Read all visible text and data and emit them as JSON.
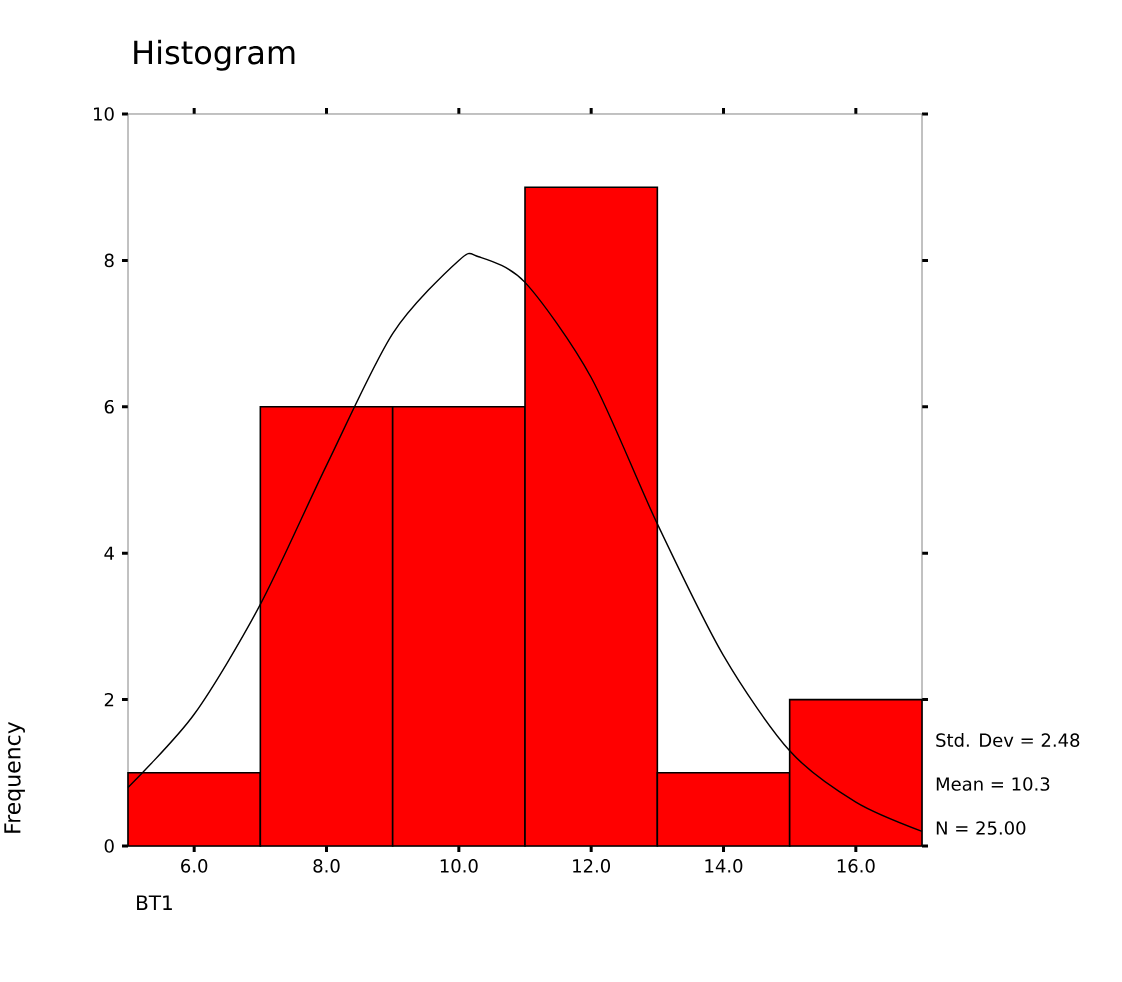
{
  "chart_data": {
    "type": "histogram",
    "title": "Histogram",
    "xlabel": "BT1",
    "ylabel": "Frequency",
    "bins": [
      5,
      7,
      9,
      11,
      13,
      15,
      17
    ],
    "values": [
      1,
      6,
      6,
      9,
      1,
      2
    ],
    "color": "#ff0000",
    "series": [
      {
        "type": "line",
        "color": "#000000",
        "x": [
          5,
          6,
          7,
          8,
          9,
          10,
          10.3,
          11,
          12,
          13,
          14,
          15,
          16,
          17
        ],
        "values": [
          0.8,
          1.8,
          3.3,
          5.2,
          7.0,
          8.0,
          8.05,
          7.7,
          6.4,
          4.4,
          2.6,
          1.3,
          0.6,
          0.2
        ]
      }
    ],
    "xlim": [
      5,
      17
    ],
    "ylim": [
      0,
      10
    ],
    "xticks": [
      {
        "value": 6,
        "label": "6.0"
      },
      {
        "value": 8,
        "label": "8.0"
      },
      {
        "value": 10,
        "label": "10.0"
      },
      {
        "value": 12,
        "label": "12.0"
      },
      {
        "value": 14,
        "label": "14.0"
      },
      {
        "value": 16,
        "label": "16.0"
      }
    ],
    "yticks": [
      0,
      2,
      4,
      6,
      8,
      10
    ],
    "annotations": [
      "Std. Dev = 2.48",
      "Mean = 10.3",
      "N = 25.00"
    ]
  }
}
